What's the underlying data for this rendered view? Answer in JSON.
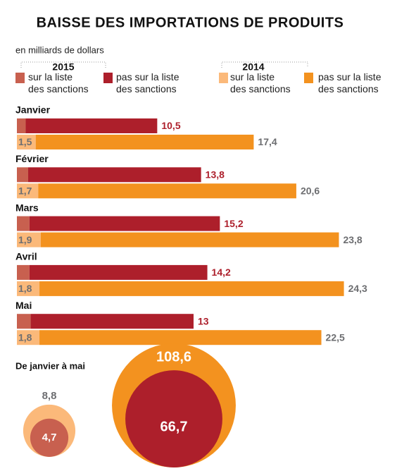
{
  "chart_data": [
    {
      "type": "bar",
      "orientation": "horizontal",
      "stacked": true,
      "title": "BAISSE DES IMPORTATIONS DE PRODUITS",
      "subtitle": "en milliards de dollars",
      "legend_titles": [
        "2015",
        "2014"
      ],
      "categories": [
        "Janvier",
        "Février",
        "Mars",
        "Avril",
        "Mai"
      ],
      "series": [
        {
          "name": "sur la liste\ndes sanctions",
          "color": "#c8604f",
          "values": [
            0.7,
            0.9,
            1.0,
            1.0,
            1.1
          ],
          "value_labels": [
            null,
            null,
            null,
            null,
            null
          ]
        },
        {
          "name": "pas sur la liste\ndes sanctions",
          "color": "#ad1f2b",
          "values": [
            10.5,
            13.8,
            15.2,
            14.2,
            13
          ],
          "value_labels": [
            "10,5",
            "13,8",
            "15,2",
            "14,2",
            "13"
          ]
        },
        {
          "name": "sur la liste\ndes sanctions",
          "color": "#fbb97a",
          "values": [
            1.5,
            1.7,
            1.9,
            1.8,
            1.8
          ],
          "value_labels": [
            "1,5",
            "1,7",
            "1,9",
            "1,8",
            "1,8"
          ]
        },
        {
          "name": "pas sur la liste\ndes sanctions",
          "color": "#f3921f",
          "values": [
            17.4,
            20.6,
            23.8,
            24.3,
            22.5
          ],
          "value_labels": [
            "17,4",
            "20,6",
            "23,8",
            "24,3",
            "22,5"
          ]
        }
      ]
    },
    {
      "type": "bubble",
      "title": "De janvier à mai",
      "series": [
        {
          "color": "#fbb97a",
          "values": [
            8.8
          ],
          "value_labels": [
            "8,8"
          ]
        },
        {
          "color": "#c8604f",
          "values": [
            4.7
          ],
          "value_labels": [
            "4,7"
          ]
        },
        {
          "color": "#f3921f",
          "values": [
            108.6
          ],
          "value_labels": [
            "108,6"
          ]
        },
        {
          "color": "#ad1f2b",
          "values": [
            66.7
          ],
          "value_labels": [
            "66,7"
          ]
        }
      ]
    }
  ]
}
